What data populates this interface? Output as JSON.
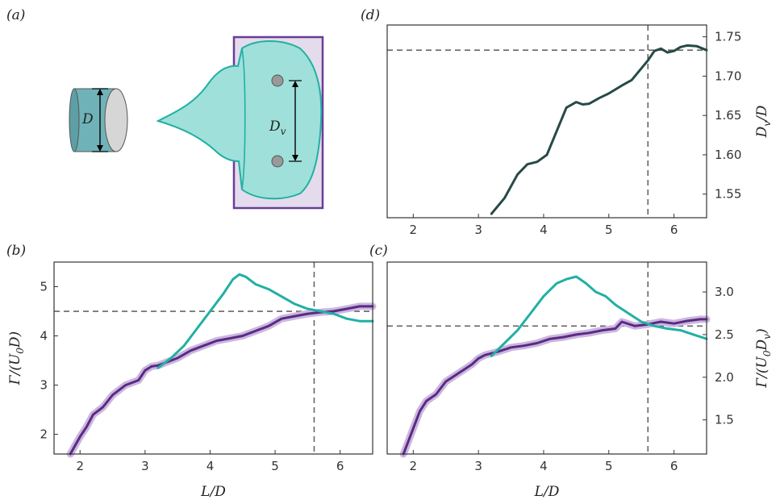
{
  "panel_labels": {
    "a": "(a)",
    "b": "(b)",
    "c": "(c)",
    "d": "(d)"
  },
  "schematic": {
    "cylinder_label": "D",
    "vortex_label": "D",
    "vortex_label_sub": "v"
  },
  "colors": {
    "purple": "#5a2a86",
    "purple_band": "#cbb7dd",
    "teal": "#21b0a3",
    "dark_teal": "#264a48",
    "ref_line": "#666666",
    "box_fill": "#e4dcec",
    "box_stroke": "#6a3d98",
    "blob_fill": "#9fe0da",
    "cyl_fill": "#6fb3b8",
    "disc_fill": "#d6d6d6"
  },
  "chart_data": [
    {
      "id": "d",
      "type": "line",
      "title": "",
      "xlabel": "",
      "ylabel": "D_v/D",
      "ylabel_main": "D",
      "ylabel_sub": "v",
      "ylabel_tail": "/D",
      "xlim": [
        1.6,
        6.5
      ],
      "ylim": [
        1.52,
        1.765
      ],
      "xticks": [
        "2",
        "3",
        "4",
        "5",
        "6"
      ],
      "yticks": [
        "1.55",
        "1.60",
        "1.65",
        "1.70",
        "1.75"
      ],
      "ref_x": 5.6,
      "ref_y": 1.733,
      "series": [
        {
          "x": [
            3.2,
            3.4,
            3.6,
            3.75,
            3.9,
            4.05,
            4.2,
            4.35,
            4.5,
            4.6,
            4.7,
            4.85,
            5.0,
            5.2,
            5.35,
            5.5,
            5.6,
            5.7,
            5.8,
            5.9,
            6.0,
            6.1,
            6.2,
            6.35,
            6.5
          ],
          "y": [
            1.525,
            1.545,
            1.575,
            1.588,
            1.591,
            1.6,
            1.63,
            1.66,
            1.667,
            1.664,
            1.665,
            1.672,
            1.678,
            1.688,
            1.695,
            1.71,
            1.72,
            1.732,
            1.735,
            1.73,
            1.732,
            1.737,
            1.739,
            1.738,
            1.733
          ]
        }
      ]
    },
    {
      "id": "b",
      "type": "line",
      "title": "",
      "xlabel": "L/D",
      "ylabel": "Γ/(U0 D)",
      "ylabel_main": "Γ/(U",
      "ylabel_sub": "0",
      "ylabel_tail": "D)",
      "xlim": [
        1.6,
        6.5
      ],
      "ylim": [
        1.6,
        5.5
      ],
      "xticks": [
        "2",
        "3",
        "4",
        "5",
        "6"
      ],
      "yticks": [
        "2",
        "3",
        "4",
        "5"
      ],
      "ref_x": 5.6,
      "ref_y": 4.5,
      "series": [
        {
          "x": [
            1.85,
            2.0,
            2.1,
            2.2,
            2.35,
            2.5,
            2.7,
            2.9,
            3.0,
            3.1,
            3.2,
            3.3,
            3.5,
            3.7,
            3.9,
            4.1,
            4.3,
            4.5,
            4.7,
            4.9,
            5.1,
            5.3,
            5.5,
            5.7,
            5.9,
            6.1,
            6.3,
            6.5
          ],
          "y": [
            1.6,
            1.95,
            2.15,
            2.4,
            2.55,
            2.8,
            3.0,
            3.1,
            3.3,
            3.38,
            3.4,
            3.45,
            3.55,
            3.7,
            3.8,
            3.9,
            3.95,
            4.0,
            4.1,
            4.2,
            4.35,
            4.4,
            4.45,
            4.48,
            4.5,
            4.55,
            4.6,
            4.6
          ]
        },
        {
          "x": [
            3.2,
            3.4,
            3.6,
            3.8,
            4.0,
            4.2,
            4.35,
            4.45,
            4.55,
            4.7,
            4.9,
            5.1,
            5.3,
            5.5,
            5.7,
            5.9,
            6.1,
            6.3,
            6.5
          ],
          "y": [
            3.35,
            3.55,
            3.8,
            4.15,
            4.5,
            4.85,
            5.15,
            5.25,
            5.2,
            5.05,
            4.95,
            4.8,
            4.65,
            4.55,
            4.5,
            4.45,
            4.35,
            4.3,
            4.3
          ]
        }
      ]
    },
    {
      "id": "c",
      "type": "line",
      "title": "",
      "xlabel": "L/D",
      "ylabel": "Γ/(U0 Dv)",
      "ylabel_main": "Γ/(U",
      "ylabel_sub": "0",
      "ylabel_mid": "D",
      "ylabel_sub2": "v",
      "ylabel_tail": ")",
      "xlim": [
        1.6,
        6.5
      ],
      "ylim": [
        1.1,
        3.35
      ],
      "xticks": [
        "2",
        "3",
        "4",
        "5",
        "6"
      ],
      "yticks": [
        "1.5",
        "2.0",
        "2.5",
        "3.0"
      ],
      "ref_x": 5.6,
      "ref_y": 2.6,
      "series": [
        {
          "x": [
            1.85,
            2.0,
            2.1,
            2.2,
            2.35,
            2.5,
            2.7,
            2.9,
            3.0,
            3.1,
            3.2,
            3.3,
            3.5,
            3.7,
            3.9,
            4.1,
            4.3,
            4.5,
            4.7,
            4.9,
            5.1,
            5.2,
            5.4,
            5.6,
            5.8,
            6.0,
            6.2,
            6.4,
            6.5
          ],
          "y": [
            1.1,
            1.4,
            1.6,
            1.72,
            1.8,
            1.95,
            2.05,
            2.15,
            2.22,
            2.26,
            2.28,
            2.3,
            2.35,
            2.37,
            2.4,
            2.45,
            2.47,
            2.5,
            2.52,
            2.55,
            2.57,
            2.65,
            2.6,
            2.62,
            2.65,
            2.63,
            2.66,
            2.68,
            2.68
          ]
        },
        {
          "x": [
            3.2,
            3.4,
            3.6,
            3.8,
            4.0,
            4.2,
            4.35,
            4.5,
            4.65,
            4.8,
            4.95,
            5.1,
            5.3,
            5.5,
            5.7,
            5.9,
            6.1,
            6.3,
            6.5
          ],
          "y": [
            2.25,
            2.4,
            2.55,
            2.75,
            2.95,
            3.1,
            3.15,
            3.18,
            3.1,
            3.0,
            2.95,
            2.85,
            2.75,
            2.65,
            2.6,
            2.57,
            2.55,
            2.5,
            2.45
          ]
        }
      ]
    }
  ]
}
